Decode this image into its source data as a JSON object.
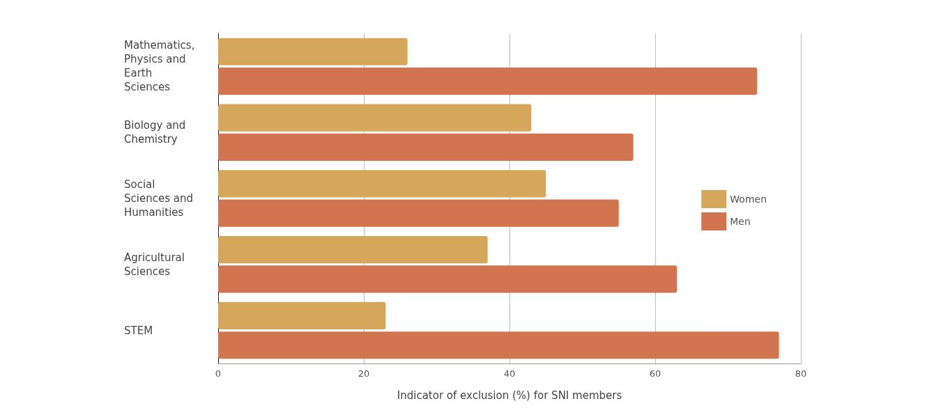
{
  "chart_data": {
    "type": "bar",
    "orientation": "horizontal",
    "xlabel": "Indicator of exclusion (%) for SNI members",
    "categories": [
      "Mathematics,\nPhysics and\nEarth\nSciences",
      "Biology and\nChemistry",
      "Social\nSciences and\nHumanities",
      "Agricultural\nSciences",
      "STEM"
    ],
    "series": [
      {
        "name": "Women",
        "color": "#d4a75a",
        "values": [
          26,
          43,
          45,
          37,
          23
        ]
      },
      {
        "name": "Men",
        "color": "#d37450",
        "values": [
          74,
          57,
          55,
          63,
          77
        ]
      }
    ],
    "xlim": [
      0,
      80
    ],
    "xticks": [
      0,
      20,
      40,
      60,
      80
    ],
    "grid": "x",
    "legend": "right"
  }
}
